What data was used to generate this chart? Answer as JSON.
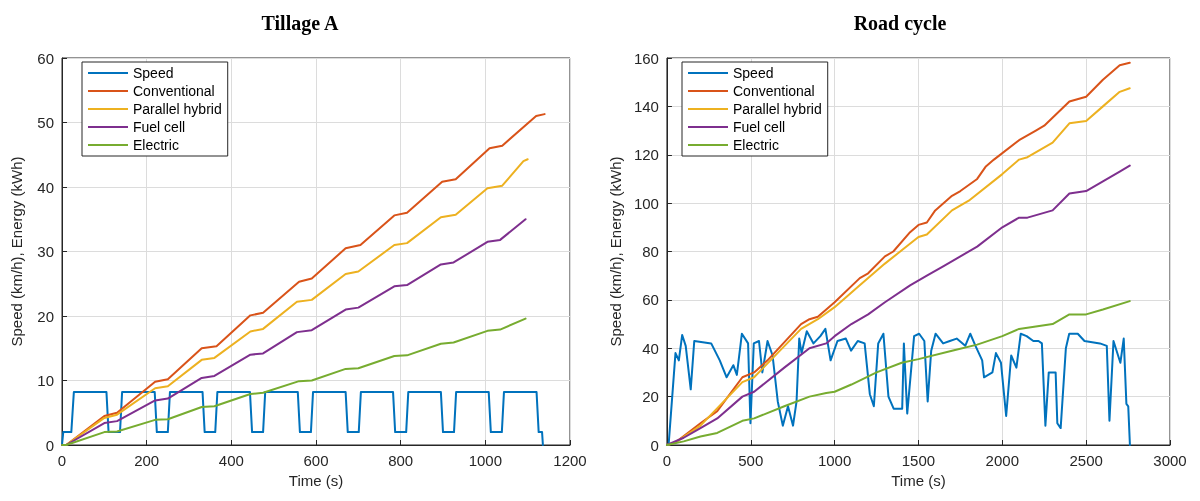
{
  "chart_data": [
    {
      "type": "line",
      "title": "Tillage A",
      "xlabel": "Time (s)",
      "ylabel": "Speed (km/h), Energy (kWh)",
      "xlim": [
        0,
        1200
      ],
      "xticks": [
        0,
        200,
        400,
        600,
        800,
        1000,
        1200
      ],
      "ylim": [
        0,
        60
      ],
      "yticks": [
        0,
        10,
        20,
        30,
        40,
        50,
        60
      ],
      "grid": true,
      "legend": "top left",
      "marker": "none",
      "line_style": "solid",
      "series": [
        {
          "name": "Speed",
          "color": "#0072bd",
          "x": [
            0,
            3,
            22,
            28,
            105,
            110,
            137,
            142,
            219,
            224,
            250,
            255,
            332,
            337,
            362,
            367,
            444,
            449,
            475,
            480,
            557,
            562,
            588,
            593,
            670,
            675,
            701,
            706,
            782,
            787,
            813,
            818,
            895,
            900,
            926,
            931,
            1008,
            1013,
            1039,
            1044,
            1121,
            1126,
            1134,
            1136
          ],
          "values": [
            0,
            2,
            2,
            8.2,
            8.2,
            2,
            2,
            8.2,
            8.2,
            2,
            2,
            8.2,
            8.2,
            2,
            2,
            8.2,
            8.2,
            2,
            2,
            8.2,
            8.2,
            2,
            2,
            8.2,
            8.2,
            2,
            2,
            8.2,
            8.2,
            2,
            2,
            8.2,
            8.2,
            2,
            2,
            8.2,
            8.2,
            2,
            2,
            8.2,
            8.2,
            2,
            2,
            0
          ]
        },
        {
          "name": "Conventional",
          "color": "#d95319",
          "x": [
            0,
            10,
            100,
            130,
            220,
            250,
            330,
            365,
            445,
            475,
            560,
            590,
            670,
            705,
            785,
            815,
            898,
            930,
            1010,
            1040,
            1120,
            1140
          ],
          "values": [
            0,
            0,
            4.5,
            5,
            9.8,
            10.2,
            15,
            15.3,
            20.1,
            20.5,
            25.3,
            25.8,
            30.5,
            31,
            35.6,
            36,
            40.8,
            41.2,
            46,
            46.4,
            51,
            51.3
          ]
        },
        {
          "name": "Parallel hybrid",
          "color": "#edb120",
          "x": [
            0,
            10,
            100,
            130,
            220,
            250,
            330,
            360,
            445,
            475,
            555,
            590,
            670,
            700,
            785,
            815,
            895,
            930,
            1005,
            1040,
            1090,
            1100
          ],
          "values": [
            0,
            0,
            4.2,
            4.7,
            8.8,
            9.1,
            13.2,
            13.5,
            17.6,
            18,
            22.2,
            22.5,
            26.5,
            26.9,
            31,
            31.3,
            35.3,
            35.7,
            39.8,
            40.2,
            44,
            44.3
          ]
        },
        {
          "name": "Fuel cell",
          "color": "#7e2f8e",
          "x": [
            0,
            10,
            100,
            130,
            220,
            250,
            330,
            360,
            445,
            475,
            555,
            590,
            670,
            700,
            785,
            815,
            895,
            925,
            1005,
            1035,
            1095
          ],
          "values": [
            0,
            0,
            3.4,
            3.7,
            6.9,
            7.2,
            10.4,
            10.7,
            14,
            14.2,
            17.5,
            17.8,
            21,
            21.3,
            24.6,
            24.8,
            28,
            28.3,
            31.5,
            31.8,
            35
          ]
        },
        {
          "name": "Electric",
          "color": "#77ac30",
          "x": [
            0,
            10,
            100,
            130,
            220,
            250,
            330,
            360,
            445,
            475,
            560,
            590,
            670,
            700,
            785,
            815,
            895,
            925,
            1005,
            1035,
            1095
          ],
          "values": [
            0,
            0,
            2,
            2.1,
            3.9,
            4,
            5.9,
            6,
            7.9,
            8.1,
            9.9,
            10,
            11.8,
            11.9,
            13.8,
            13.9,
            15.7,
            15.9,
            17.7,
            17.9,
            19.6
          ]
        }
      ]
    },
    {
      "type": "line",
      "title": "Road cycle",
      "xlabel": "Time (s)",
      "ylabel": "Speed (km/h), Energy (kWh)",
      "xlim": [
        0,
        3000
      ],
      "xticks": [
        0,
        500,
        1000,
        1500,
        2000,
        2500,
        3000
      ],
      "ylim": [
        0,
        160
      ],
      "yticks": [
        0,
        20,
        40,
        60,
        80,
        100,
        120,
        140,
        160
      ],
      "grid": true,
      "legend": "top left",
      "marker": "none",
      "line_style": "solid",
      "series": [
        {
          "name": "Speed",
          "color": "#0072bd",
          "x": [
            0,
            10,
            24,
            51,
            71,
            91,
            112,
            142,
            163,
            264,
            315,
            356,
            396,
            417,
            447,
            484,
            498,
            518,
            549,
            569,
            600,
            630,
            661,
            691,
            722,
            752,
            773,
            789,
            803,
            834,
            874,
            915,
            945,
            976,
            1017,
            1067,
            1098,
            1138,
            1179,
            1210,
            1234,
            1260,
            1291,
            1321,
            1352,
            1403,
            1413,
            1433,
            1474,
            1504,
            1535,
            1555,
            1576,
            1602,
            1647,
            1687,
            1728,
            1779,
            1809,
            1840,
            1880,
            1891,
            1941,
            1962,
            1992,
            2023,
            2053,
            2084,
            2110,
            2145,
            2185,
            2216,
            2236,
            2257,
            2277,
            2318,
            2328,
            2348,
            2379,
            2399,
            2450,
            2490,
            2582,
            2623,
            2639,
            2663,
            2704,
            2724,
            2740,
            2751,
            2761
          ],
          "values": [
            0,
            0,
            13,
            38,
            35,
            45.5,
            41,
            23,
            43,
            42,
            35,
            28,
            33,
            29,
            46,
            42,
            9,
            42,
            43,
            30,
            43,
            37,
            18,
            8,
            16,
            8,
            18,
            44,
            38,
            47,
            42,
            45,
            48,
            35,
            43,
            44,
            39,
            43,
            42,
            21,
            16,
            42,
            46,
            20,
            15,
            15,
            42,
            13,
            45,
            46,
            43,
            18,
            39,
            46,
            42,
            43,
            44,
            41,
            46,
            41,
            35,
            28,
            30,
            38,
            34,
            12,
            37,
            32,
            46,
            45,
            43,
            43,
            42,
            8,
            30,
            30,
            9,
            7,
            40,
            46,
            46,
            43,
            42,
            41,
            10,
            43,
            34,
            44,
            17,
            16,
            0
          ]
        },
        {
          "name": "Conventional",
          "color": "#d95319",
          "x": [
            0,
            50,
            200,
            300,
            450,
            520,
            600,
            800,
            850,
            900,
            1000,
            1150,
            1200,
            1300,
            1350,
            1450,
            1500,
            1550,
            1600,
            1700,
            1750,
            1850,
            1900,
            1950,
            2100,
            2200,
            2250,
            2400,
            2500,
            2600,
            2700,
            2760
          ],
          "values": [
            0,
            1,
            9,
            14,
            28,
            30,
            35,
            50,
            52,
            53,
            59,
            69,
            71,
            78,
            80,
            88,
            91,
            92,
            97,
            103,
            105,
            110,
            115,
            118,
            126,
            130,
            132,
            142,
            144,
            151,
            157,
            158
          ]
        },
        {
          "name": "Parallel hybrid",
          "color": "#edb120",
          "x": [
            0,
            50,
            200,
            450,
            520,
            800,
            900,
            1000,
            1150,
            1300,
            1500,
            1550,
            1700,
            1800,
            2000,
            2100,
            2150,
            2300,
            2400,
            2500,
            2600,
            2700,
            2760
          ],
          "values": [
            0,
            1,
            8,
            26,
            28,
            48,
            52,
            57,
            66,
            75,
            86,
            87,
            97,
            101,
            112,
            118,
            119,
            125,
            133,
            134,
            140,
            146,
            147.5
          ]
        },
        {
          "name": "Fuel cell",
          "color": "#7e2f8e",
          "x": [
            0,
            100,
            200,
            300,
            450,
            520,
            700,
            850,
            950,
            1000,
            1100,
            1200,
            1300,
            1450,
            1550,
            1650,
            1750,
            1850,
            2000,
            2100,
            2150,
            2300,
            2400,
            2500,
            2600,
            2700,
            2760
          ],
          "values": [
            0,
            3,
            7,
            11,
            20,
            22,
            32,
            40,
            42,
            45,
            50,
            54,
            59,
            66,
            70,
            74,
            78,
            82,
            90,
            94,
            94,
            97,
            104,
            105,
            109,
            113,
            115.5
          ]
        },
        {
          "name": "Electric",
          "color": "#77ac30",
          "x": [
            0,
            100,
            200,
            300,
            450,
            520,
            700,
            850,
            950,
            1000,
            1100,
            1250,
            1400,
            1500,
            1700,
            1850,
            2000,
            2100,
            2200,
            2300,
            2400,
            2500,
            2600,
            2760
          ],
          "values": [
            0,
            1.5,
            3.5,
            5,
            10,
            11,
            16,
            20,
            21.5,
            22,
            25,
            30,
            34,
            35.5,
            39,
            41.5,
            45,
            48,
            49,
            50,
            54,
            54,
            56,
            59.5
          ]
        }
      ]
    }
  ]
}
